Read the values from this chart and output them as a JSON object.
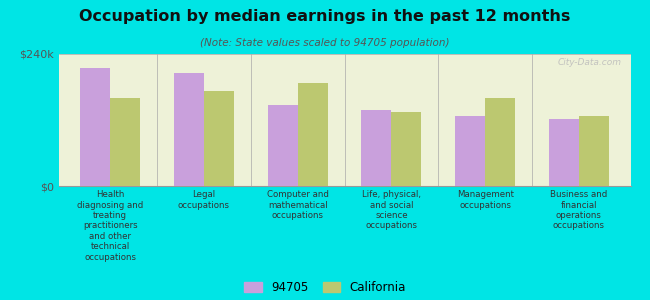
{
  "title": "Occupation by median earnings in the past 12 months",
  "subtitle": "(Note: State values scaled to 94705 population)",
  "categories": [
    "Health\ndiagnosing and\ntreating\npractitioners\nand other\ntechnical\noccupations",
    "Legal\noccupations",
    "Computer and\nmathematical\noccupations",
    "Life, physical,\nand social\nscience\noccupations",
    "Management\noccupations",
    "Business and\nfinancial\noperations\noccupations"
  ],
  "values_94705": [
    215000,
    205000,
    148000,
    138000,
    128000,
    122000
  ],
  "values_california": [
    160000,
    172000,
    188000,
    135000,
    160000,
    128000
  ],
  "color_94705": "#c9a0dc",
  "color_california": "#bcc870",
  "background_color": "#00e5e5",
  "plot_bg_color": "#eef2d8",
  "ylim": [
    0,
    240000
  ],
  "ytick_labels": [
    "$0",
    "$240k"
  ],
  "legend_label_94705": "94705",
  "legend_label_california": "California",
  "watermark": "City-Data.com"
}
